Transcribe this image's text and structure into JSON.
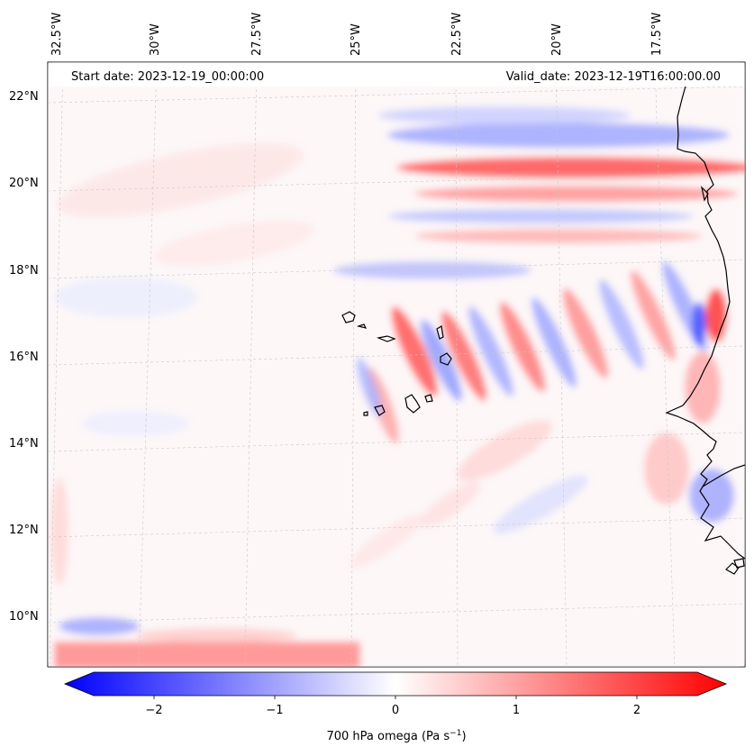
{
  "map": {
    "start_date": "Start date: 2023-12-19_00:00:00",
    "valid_date": "Valid_date: 2023-12-19T16:00:00.00",
    "lon_labels": [
      "32.5°W",
      "30°W",
      "27.5°W",
      "25°W",
      "22.5°W",
      "20°W",
      "17.5°W"
    ],
    "lat_labels": [
      "22°N",
      "20°N",
      "18°N",
      "16°N",
      "14°N",
      "12°N",
      "10°N"
    ]
  },
  "colorbar": {
    "ticks": [
      "−2",
      "−1",
      "0",
      "1",
      "2"
    ],
    "label": "700 hPa omega (Pa s",
    "label_sup": "−1",
    "label_end": ")",
    "colors": {
      "neg": "#0000ff",
      "mid": "#ffffff",
      "pos": "#ff0000"
    }
  }
}
